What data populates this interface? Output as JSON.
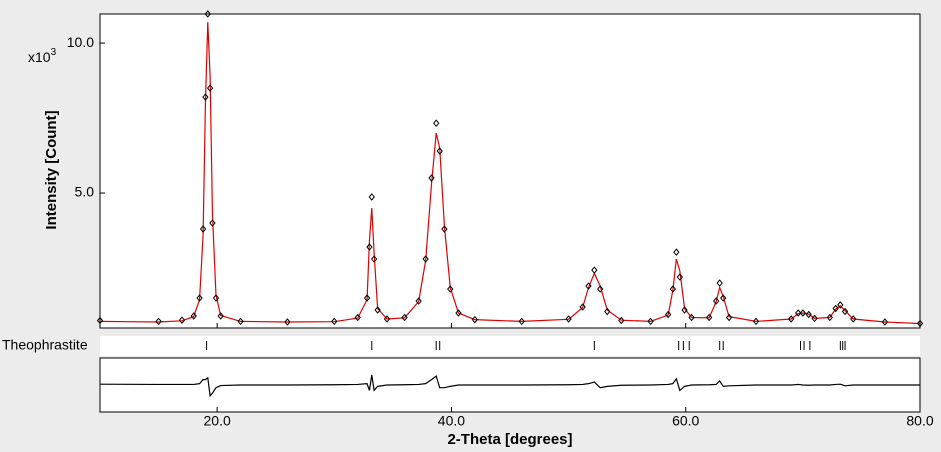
{
  "chart_data": {
    "type": "line",
    "x_label": "2-Theta [degrees]",
    "y_label": "Intensity [Count]",
    "multiplier": {
      "base": "x10",
      "exponent": "3"
    },
    "xlim": [
      10,
      80
    ],
    "xticks": [
      {
        "value": 20,
        "label": "20.0"
      },
      {
        "value": 40,
        "label": "40.0"
      },
      {
        "value": 60,
        "label": "60.0"
      },
      {
        "value": 80,
        "label": "80.0"
      }
    ],
    "ylim": [
      500,
      10970
    ],
    "yticks": [
      {
        "value": 5000,
        "label": "5.0"
      },
      {
        "value": 10000,
        "label": "10.0"
      }
    ],
    "difference_ylim": [
      -1000,
      1000
    ],
    "x": [
      10,
      15,
      17,
      18,
      18.5,
      18.8,
      19.0,
      19.2,
      19.4,
      19.6,
      19.9,
      20.3,
      22,
      26,
      30,
      32,
      32.8,
      33.0,
      33.2,
      33.4,
      33.7,
      34.5,
      36,
      37.2,
      37.8,
      38.3,
      38.7,
      39.0,
      39.4,
      39.9,
      40.6,
      42,
      46,
      50,
      51.2,
      51.7,
      52.2,
      52.7,
      53.3,
      54.5,
      57,
      58.5,
      58.9,
      59.2,
      59.5,
      59.9,
      60.5,
      62.0,
      62.6,
      62.9,
      63.2,
      63.7,
      66,
      69,
      69.6,
      70.0,
      70.5,
      71.0,
      72.3,
      72.8,
      73.2,
      73.6,
      74.3,
      77,
      80
    ],
    "observed": {
      "color": "#000000",
      "values": [
        750,
        720,
        760,
        900,
        1500,
        3800,
        8200,
        10970,
        8500,
        4000,
        1500,
        900,
        720,
        700,
        720,
        850,
        1500,
        3200,
        4870,
        2800,
        1100,
        800,
        850,
        1400,
        2800,
        5500,
        7330,
        6400,
        3800,
        1800,
        1000,
        780,
        720,
        800,
        1200,
        1900,
        2430,
        1800,
        1050,
        750,
        720,
        950,
        1800,
        3030,
        2200,
        1100,
        850,
        850,
        1400,
        2000,
        1500,
        850,
        720,
        800,
        1000,
        1000,
        950,
        820,
        850,
        1150,
        1270,
        1050,
        800,
        700,
        650
      ]
    },
    "calculated": {
      "color": "#e00000",
      "values": [
        720,
        700,
        740,
        880,
        1450,
        3600,
        8000,
        10700,
        8900,
        4300,
        1600,
        920,
        720,
        700,
        710,
        830,
        1450,
        3400,
        4500,
        3000,
        1150,
        800,
        840,
        1380,
        2750,
        5300,
        7000,
        6500,
        3900,
        1850,
        1000,
        780,
        720,
        790,
        1180,
        1850,
        2320,
        1900,
        1100,
        760,
        720,
        930,
        1750,
        2800,
        2400,
        1150,
        850,
        840,
        1380,
        1850,
        1550,
        880,
        720,
        800,
        980,
        1000,
        960,
        820,
        850,
        1130,
        1240,
        1080,
        800,
        700,
        650
      ]
    },
    "difference": {
      "color": "#000000",
      "values": [
        30,
        20,
        20,
        20,
        50,
        200,
        200,
        270,
        -400,
        -300,
        -100,
        -20,
        0,
        0,
        10,
        20,
        50,
        -200,
        370,
        -200,
        -50,
        0,
        10,
        20,
        50,
        200,
        330,
        -100,
        -100,
        -50,
        0,
        0,
        0,
        10,
        20,
        50,
        110,
        -100,
        -50,
        -10,
        0,
        20,
        50,
        230,
        -200,
        -50,
        0,
        10,
        20,
        150,
        -50,
        -30,
        0,
        0,
        20,
        0,
        -10,
        0,
        0,
        20,
        30,
        -30,
        0,
        0,
        0
      ]
    },
    "phase": {
      "name": "Theophrastite",
      "color": "#008000",
      "reflections": [
        19.1,
        33.2,
        38.7,
        39.0,
        52.2,
        59.4,
        59.8,
        60.3,
        62.9,
        63.2,
        69.8,
        70.1,
        70.6,
        73.2,
        73.4,
        73.6
      ]
    }
  }
}
